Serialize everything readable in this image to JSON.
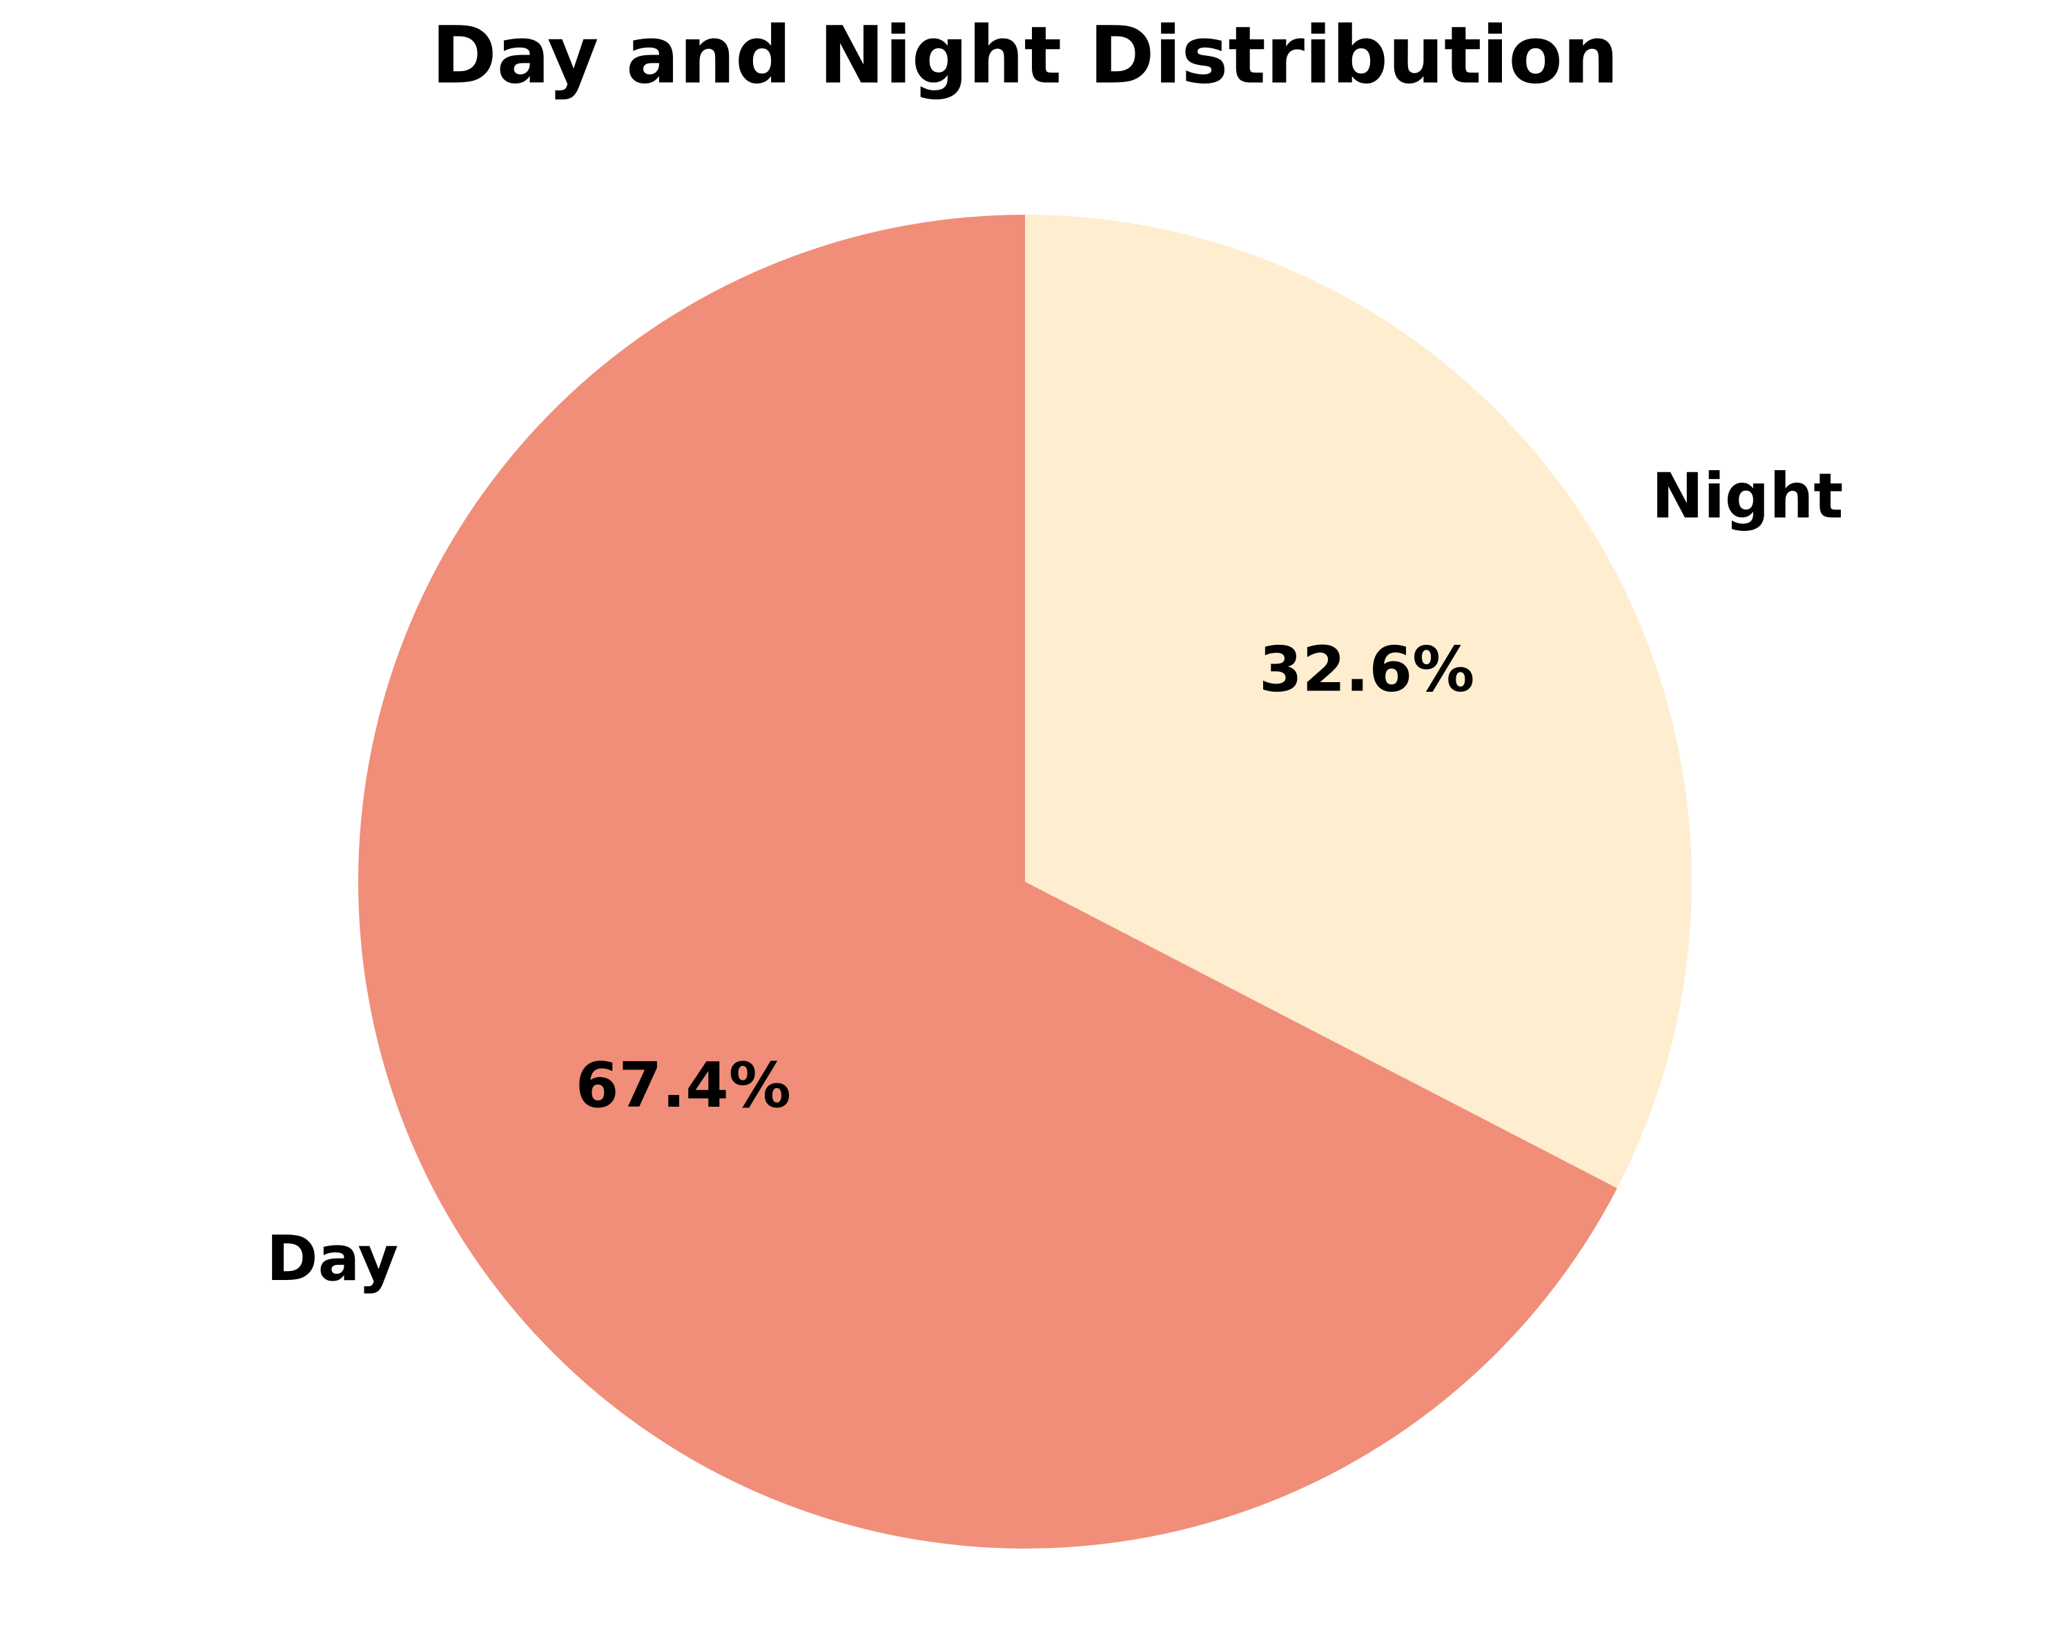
{
  "chart_data": {
    "type": "pie",
    "title": "Day and Night Distribution",
    "categories": [
      "Day",
      "Night"
    ],
    "values": [
      67.4,
      32.6
    ],
    "value_labels": [
      "67.4%",
      "32.6%"
    ],
    "colors": [
      "#f08e79",
      "#feeecf"
    ],
    "start_angle": 90,
    "direction": "counterclockwise"
  }
}
